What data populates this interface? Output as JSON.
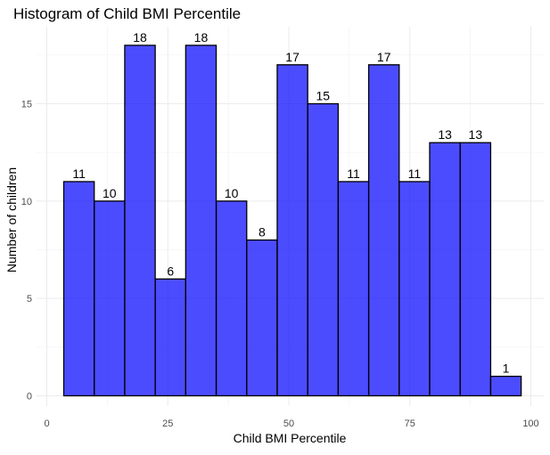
{
  "chart_data": {
    "type": "bar",
    "title": "Histogram of Child BMI Percentile",
    "xlabel": "Child BMI Percentile",
    "ylabel": "Number of children",
    "xlim": [
      0,
      100
    ],
    "ylim": [
      0,
      18
    ],
    "grid": true,
    "legend": "none",
    "bar_fill": "#0000FF",
    "bar_fill_opacity": 0.7,
    "bar_outline": "#000000",
    "x_ticks": [
      {
        "value": 0,
        "label": "0"
      },
      {
        "value": 25,
        "label": "25"
      },
      {
        "value": 50,
        "label": "50"
      },
      {
        "value": 75,
        "label": "75"
      },
      {
        "value": 100,
        "label": "100"
      }
    ],
    "y_ticks": [
      {
        "value": 0,
        "label": "0"
      },
      {
        "value": 5,
        "label": "5"
      },
      {
        "value": 10,
        "label": "10"
      },
      {
        "value": 15,
        "label": "15"
      }
    ],
    "bins": [
      {
        "start": 3.5,
        "end": 9.8,
        "count": 11,
        "label": "11"
      },
      {
        "start": 9.8,
        "end": 16.1,
        "count": 10,
        "label": "10"
      },
      {
        "start": 16.1,
        "end": 22.4,
        "count": 18,
        "label": "18"
      },
      {
        "start": 22.4,
        "end": 28.7,
        "count": 6,
        "label": "6"
      },
      {
        "start": 28.7,
        "end": 35.0,
        "count": 18,
        "label": "18"
      },
      {
        "start": 35.0,
        "end": 41.3,
        "count": 10,
        "label": "10"
      },
      {
        "start": 41.3,
        "end": 47.6,
        "count": 8,
        "label": "8"
      },
      {
        "start": 47.6,
        "end": 53.9,
        "count": 17,
        "label": "17"
      },
      {
        "start": 53.9,
        "end": 60.2,
        "count": 15,
        "label": "15"
      },
      {
        "start": 60.2,
        "end": 66.5,
        "count": 11,
        "label": "11"
      },
      {
        "start": 66.5,
        "end": 72.8,
        "count": 17,
        "label": "17"
      },
      {
        "start": 72.8,
        "end": 79.1,
        "count": 11,
        "label": "11"
      },
      {
        "start": 79.1,
        "end": 85.4,
        "count": 13,
        "label": "13"
      },
      {
        "start": 85.4,
        "end": 91.7,
        "count": 13,
        "label": "13"
      },
      {
        "start": 91.7,
        "end": 98.0,
        "count": 1,
        "label": "1"
      }
    ]
  }
}
